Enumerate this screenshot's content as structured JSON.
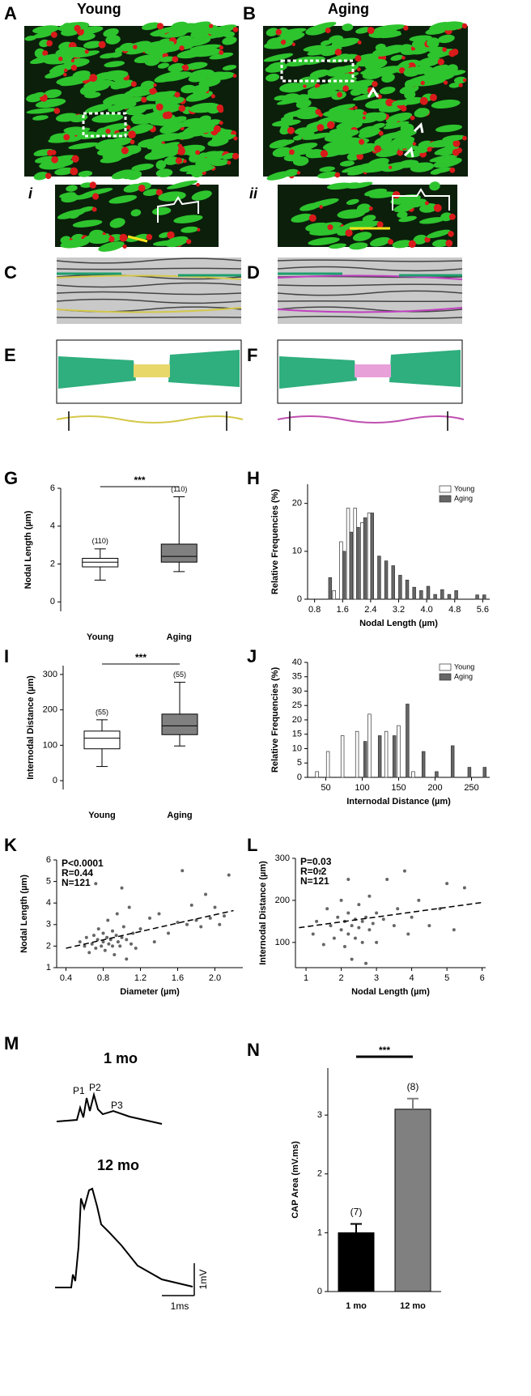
{
  "figure": {
    "panel_labels": [
      "A",
      "B",
      "C",
      "D",
      "E",
      "F",
      "M"
    ],
    "headers": [
      "Young",
      "Aging"
    ],
    "insets": [
      "i",
      "ii"
    ],
    "traces": {
      "title_1": "1 mo",
      "peaks": [
        "P1",
        "P2",
        "P3"
      ],
      "title_2": "12 mo",
      "scale_y": "1mV",
      "scale_x": "1ms"
    }
  },
  "chart_data": [
    {
      "type": "box",
      "panel": "G",
      "ylabel": "Nodal Length (µm)",
      "categories": [
        "Young",
        "Aging"
      ],
      "boxes": [
        {
          "min": 1.15,
          "q1": 1.85,
          "median": 2.1,
          "q3": 2.3,
          "max": 2.8
        },
        {
          "min": 1.6,
          "q1": 2.1,
          "median": 2.4,
          "q3": 3.05,
          "max": 5.55
        }
      ],
      "colors": [
        "#ffffff",
        "#808080"
      ],
      "n_labels": [
        "(110)",
        "(110)"
      ],
      "significance": "***",
      "ylim": [
        -0.5,
        6
      ],
      "yticks": [
        0,
        2,
        4,
        6
      ]
    },
    {
      "type": "histogram",
      "panel": "H",
      "ylabel": "Relative Frequencies (%)",
      "xlabel": "Nodal Length (µm)",
      "series": [
        {
          "name": "Young",
          "color": "#ffffff",
          "x": [
            1.4,
            1.6,
            1.8,
            2.0,
            2.2,
            2.4
          ],
          "values": [
            1.8,
            12,
            19,
            19,
            16,
            18
          ]
        },
        {
          "name": "Aging",
          "color": "#666666",
          "x": [
            1.2,
            1.6,
            1.8,
            2.0,
            2.2,
            2.4,
            2.6,
            2.8,
            3.0,
            3.2,
            3.4,
            3.6,
            3.8,
            4.0,
            4.2,
            4.4,
            4.6,
            4.8,
            5.4,
            5.6
          ],
          "values": [
            4.5,
            10,
            14,
            15,
            17,
            18,
            9,
            8,
            7,
            5,
            4,
            2.5,
            1.8,
            2.7,
            1,
            2,
            1,
            1.8,
            0.9,
            0.9
          ]
        }
      ],
      "xlim": [
        0.6,
        5.8
      ],
      "xticks": [
        0.8,
        1.6,
        2.4,
        3.2,
        {
          "value": 4,
          "label": "4.0"
        },
        4.8,
        5.6
      ],
      "ylim": [
        0,
        24
      ],
      "yticks": [
        0,
        10,
        20
      ],
      "legend": "top-right"
    },
    {
      "type": "box",
      "panel": "I",
      "ylabel": "Internodal Distance (µm)",
      "categories": [
        "Young",
        "Aging"
      ],
      "boxes": [
        {
          "min": 40,
          "q1": 90,
          "median": 120,
          "q3": 140,
          "max": 172
        },
        {
          "min": 98,
          "q1": 130,
          "median": 155,
          "q3": 188,
          "max": 278
        }
      ],
      "colors": [
        "#ffffff",
        "#808080"
      ],
      "n_labels": [
        "(55)",
        "(55)"
      ],
      "significance": "***",
      "ylim": [
        -25,
        325
      ],
      "yticks": [
        0,
        100,
        200,
        300
      ]
    },
    {
      "type": "histogram",
      "panel": "J",
      "ylabel": "Relative Frequencies (%)",
      "xlabel": "Internodal Distance (µm)",
      "series": [
        {
          "name": "Young",
          "color": "#ffffff",
          "x": [
            40,
            55,
            75,
            95,
            112,
            135,
            152,
            172
          ],
          "values": [
            2,
            9,
            14.5,
            16,
            22,
            16,
            18,
            2
          ]
        },
        {
          "name": "Aging",
          "color": "#666666",
          "x": [
            102,
            122,
            142,
            160,
            182,
            200,
            222,
            245,
            266
          ],
          "values": [
            12.5,
            14.5,
            14.5,
            25.5,
            9,
            2,
            11,
            3.5,
            3.5
          ]
        }
      ],
      "xlim": [
        25,
        275
      ],
      "xticks": [
        50,
        100,
        150,
        200,
        250
      ],
      "ylim": [
        0,
        40
      ],
      "yticks": [
        0,
        5,
        10,
        15,
        20,
        25,
        30,
        35,
        40
      ],
      "legend": "top-right"
    },
    {
      "type": "scatter",
      "panel": "K",
      "ylabel": "Nodal Length (µm)",
      "xlabel": "Diameter (µm)",
      "color": "#666666",
      "annotations": [
        "P<0.0001",
        "R=0.44",
        "N=121"
      ],
      "x": [
        0.55,
        0.6,
        0.62,
        0.65,
        0.68,
        0.7,
        0.72,
        0.74,
        0.75,
        0.78,
        0.8,
        0.8,
        0.82,
        0.84,
        0.85,
        0.86,
        0.88,
        0.9,
        0.9,
        0.92,
        0.94,
        0.95,
        0.96,
        0.98,
        1.0,
        1.0,
        1.02,
        1.05,
        1.05,
        1.08,
        1.1,
        1.12,
        1.15,
        1.2,
        1.3,
        1.35,
        1.4,
        1.5,
        1.6,
        1.65,
        1.7,
        1.75,
        1.8,
        1.85,
        1.9,
        1.95,
        2.0,
        2.05,
        2.1,
        2.15,
        0.72
      ],
      "values": [
        2.2,
        2.0,
        2.4,
        1.7,
        2.1,
        2.5,
        1.9,
        2.3,
        2.8,
        2.0,
        2.2,
        2.6,
        1.8,
        2.4,
        3.2,
        2.1,
        2.3,
        2.0,
        2.7,
        1.6,
        2.5,
        3.5,
        2.2,
        2.0,
        2.4,
        4.7,
        2.9,
        1.4,
        2.3,
        3.8,
        2.1,
        2.6,
        1.9,
        2.8,
        3.3,
        2.2,
        3.5,
        2.6,
        3.1,
        5.5,
        3.0,
        3.9,
        3.2,
        2.9,
        4.4,
        3.3,
        3.8,
        3.0,
        3.4,
        5.3,
        4.9
      ],
      "fit": {
        "x": [
          0.4,
          2.2
        ],
        "y": [
          1.9,
          3.65
        ]
      },
      "xlim": [
        0.3,
        2.3
      ],
      "xticks": [
        0.4,
        0.8,
        1.2,
        1.6,
        {
          "value": 2,
          "label": "2.0"
        }
      ],
      "ylim": [
        1,
        6
      ],
      "yticks": [
        1,
        2,
        3,
        4,
        5,
        6
      ]
    },
    {
      "type": "scatter",
      "panel": "L",
      "ylabel": "Internodal Distance (µm)",
      "xlabel": "Nodal Length (µm)",
      "color": "#666666",
      "annotations": [
        "P=0.03",
        "R=0.2",
        "N=121"
      ],
      "x": [
        1.2,
        1.3,
        1.5,
        1.6,
        1.7,
        1.8,
        1.9,
        2.0,
        2.0,
        2.1,
        2.1,
        2.2,
        2.2,
        2.3,
        2.3,
        2.4,
        2.4,
        2.5,
        2.5,
        2.6,
        2.6,
        2.7,
        2.8,
        2.8,
        2.9,
        3.0,
        3.0,
        3.2,
        3.3,
        3.5,
        3.6,
        3.8,
        3.9,
        4.0,
        4.2,
        4.5,
        4.8,
        5.0,
        5.2,
        5.5,
        1.4,
        2.2,
        2.7
      ],
      "values": [
        120,
        150,
        95,
        180,
        140,
        110,
        160,
        130,
        200,
        90,
        150,
        120,
        170,
        140,
        60,
        110,
        155,
        135,
        190,
        100,
        150,
        160,
        130,
        210,
        145,
        170,
        100,
        155,
        250,
        140,
        180,
        270,
        120,
        160,
        200,
        140,
        180,
        240,
        130,
        230,
        270,
        250,
        50
      ],
      "fit": {
        "x": [
          0.8,
          6
        ],
        "y": [
          135,
          195
        ]
      },
      "xlim": [
        0.7,
        6.1
      ],
      "xticks": [
        1,
        2,
        3,
        4,
        5,
        6
      ],
      "ylim": [
        40,
        300
      ],
      "yticks": [
        100,
        200,
        300
      ]
    },
    {
      "type": "bar",
      "panel": "N",
      "ylabel": "CAP Area (mV.ms)",
      "categories": [
        "1 mo",
        "12 mo"
      ],
      "values": [
        1.0,
        3.1
      ],
      "errors": [
        0.15,
        0.18
      ],
      "colors": [
        "#000000",
        "#808080"
      ],
      "n_labels": [
        "(7)",
        "(8)"
      ],
      "significance": "***",
      "ylim": [
        0,
        3.8
      ],
      "yticks": [
        0,
        1,
        2,
        3
      ]
    }
  ]
}
